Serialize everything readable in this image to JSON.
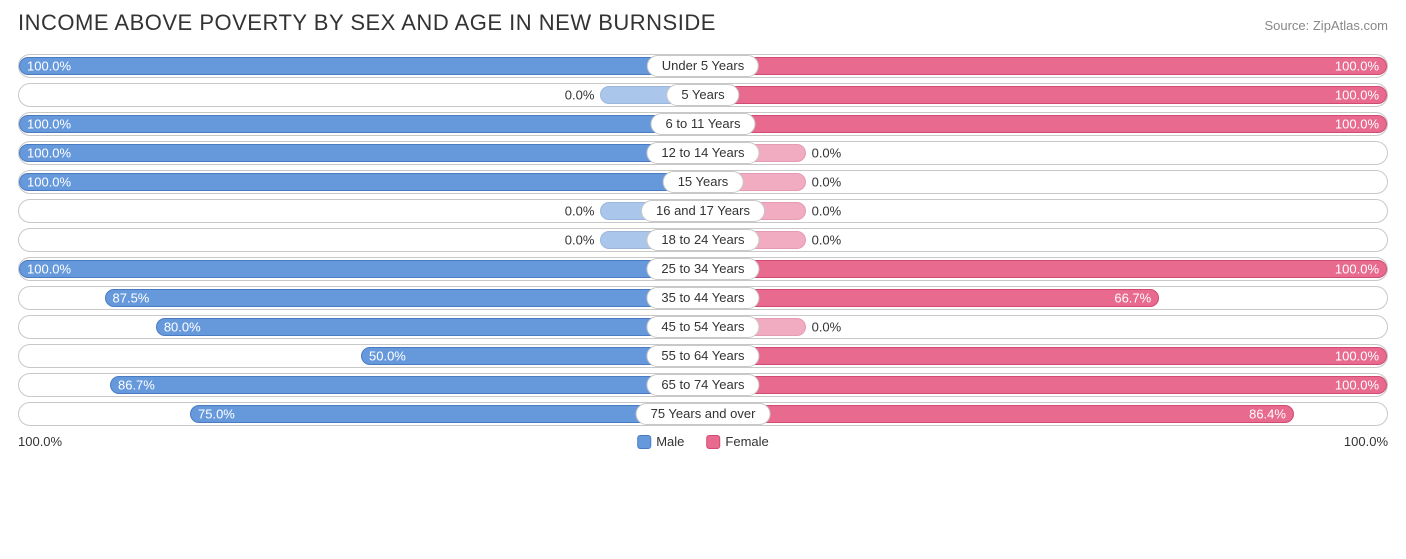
{
  "title": "INCOME ABOVE POVERTY BY SEX AND AGE IN NEW BURNSIDE",
  "source": "Source: ZipAtlas.com",
  "colors": {
    "male_fill": "#6699dc",
    "male_border": "#4a7bc0",
    "female_fill": "#e86a8f",
    "female_border": "#d04a72",
    "row_border": "#c8c8c8",
    "label_inside": "#ffffff",
    "label_outside": "#333333"
  },
  "min_bar_pct": 15,
  "layout": {
    "label_pad_inside": 8,
    "label_pad_outside": 6
  },
  "axis": {
    "left": "100.0%",
    "right": "100.0%"
  },
  "legend": {
    "male": "Male",
    "female": "Female"
  },
  "rows": [
    {
      "category": "Under 5 Years",
      "male": 100.0,
      "female": 100.0
    },
    {
      "category": "5 Years",
      "male": 0.0,
      "female": 100.0
    },
    {
      "category": "6 to 11 Years",
      "male": 100.0,
      "female": 100.0
    },
    {
      "category": "12 to 14 Years",
      "male": 100.0,
      "female": 0.0
    },
    {
      "category": "15 Years",
      "male": 100.0,
      "female": 0.0
    },
    {
      "category": "16 and 17 Years",
      "male": 0.0,
      "female": 0.0
    },
    {
      "category": "18 to 24 Years",
      "male": 0.0,
      "female": 0.0
    },
    {
      "category": "25 to 34 Years",
      "male": 100.0,
      "female": 100.0
    },
    {
      "category": "35 to 44 Years",
      "male": 87.5,
      "female": 66.7
    },
    {
      "category": "45 to 54 Years",
      "male": 80.0,
      "female": 0.0
    },
    {
      "category": "55 to 64 Years",
      "male": 50.0,
      "female": 100.0
    },
    {
      "category": "65 to 74 Years",
      "male": 86.7,
      "female": 100.0
    },
    {
      "category": "75 Years and over",
      "male": 75.0,
      "female": 86.4
    }
  ]
}
